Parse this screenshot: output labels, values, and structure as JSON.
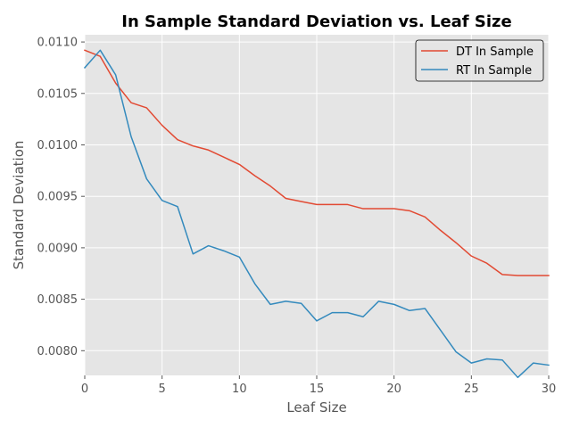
{
  "chart_data": {
    "type": "line",
    "title": "In Sample Standard Deviation vs. Leaf Size",
    "xlabel": "Leaf Size",
    "ylabel": "Standard Deviation",
    "xlim": [
      0,
      30
    ],
    "ylim": [
      0.00776,
      0.01107
    ],
    "xticks": [
      0,
      5,
      10,
      15,
      20,
      25,
      30
    ],
    "xtick_labels": [
      "0",
      "5",
      "10",
      "15",
      "20",
      "25",
      "30"
    ],
    "yticks": [
      0.008,
      0.0085,
      0.009,
      0.0095,
      0.01,
      0.0105,
      0.011
    ],
    "ytick_labels": [
      "0.0080",
      "0.0085",
      "0.0090",
      "0.0095",
      "0.0100",
      "0.0105",
      "0.0110"
    ],
    "grid": true,
    "legend_position": "top-right",
    "x": [
      0,
      1,
      2,
      3,
      4,
      5,
      6,
      7,
      8,
      9,
      10,
      11,
      12,
      13,
      14,
      15,
      16,
      17,
      18,
      19,
      20,
      21,
      22,
      23,
      24,
      25,
      26,
      27,
      28,
      29,
      30
    ],
    "series": [
      {
        "name": "DT In Sample",
        "color": "#e24a33",
        "values": [
          0.01092,
          0.01086,
          0.0106,
          0.01041,
          0.01036,
          0.01019,
          0.01005,
          0.00999,
          0.00995,
          0.00988,
          0.00981,
          0.0097,
          0.0096,
          0.00948,
          0.00945,
          0.00942,
          0.00942,
          0.00942,
          0.00938,
          0.00938,
          0.00938,
          0.00936,
          0.0093,
          0.00917,
          0.00905,
          0.00892,
          0.00885,
          0.00874,
          0.00873,
          0.00873,
          0.00873
        ]
      },
      {
        "name": "RT In Sample",
        "color": "#348abd",
        "values": [
          0.01075,
          0.01092,
          0.01068,
          0.01008,
          0.00967,
          0.00946,
          0.0094,
          0.00894,
          0.00902,
          0.00897,
          0.00891,
          0.00865,
          0.00845,
          0.00848,
          0.00846,
          0.00829,
          0.00837,
          0.00837,
          0.00833,
          0.00848,
          0.00845,
          0.00839,
          0.00841,
          0.0082,
          0.00799,
          0.00788,
          0.00792,
          0.00791,
          0.00774,
          0.00788,
          0.00786
        ]
      }
    ]
  }
}
